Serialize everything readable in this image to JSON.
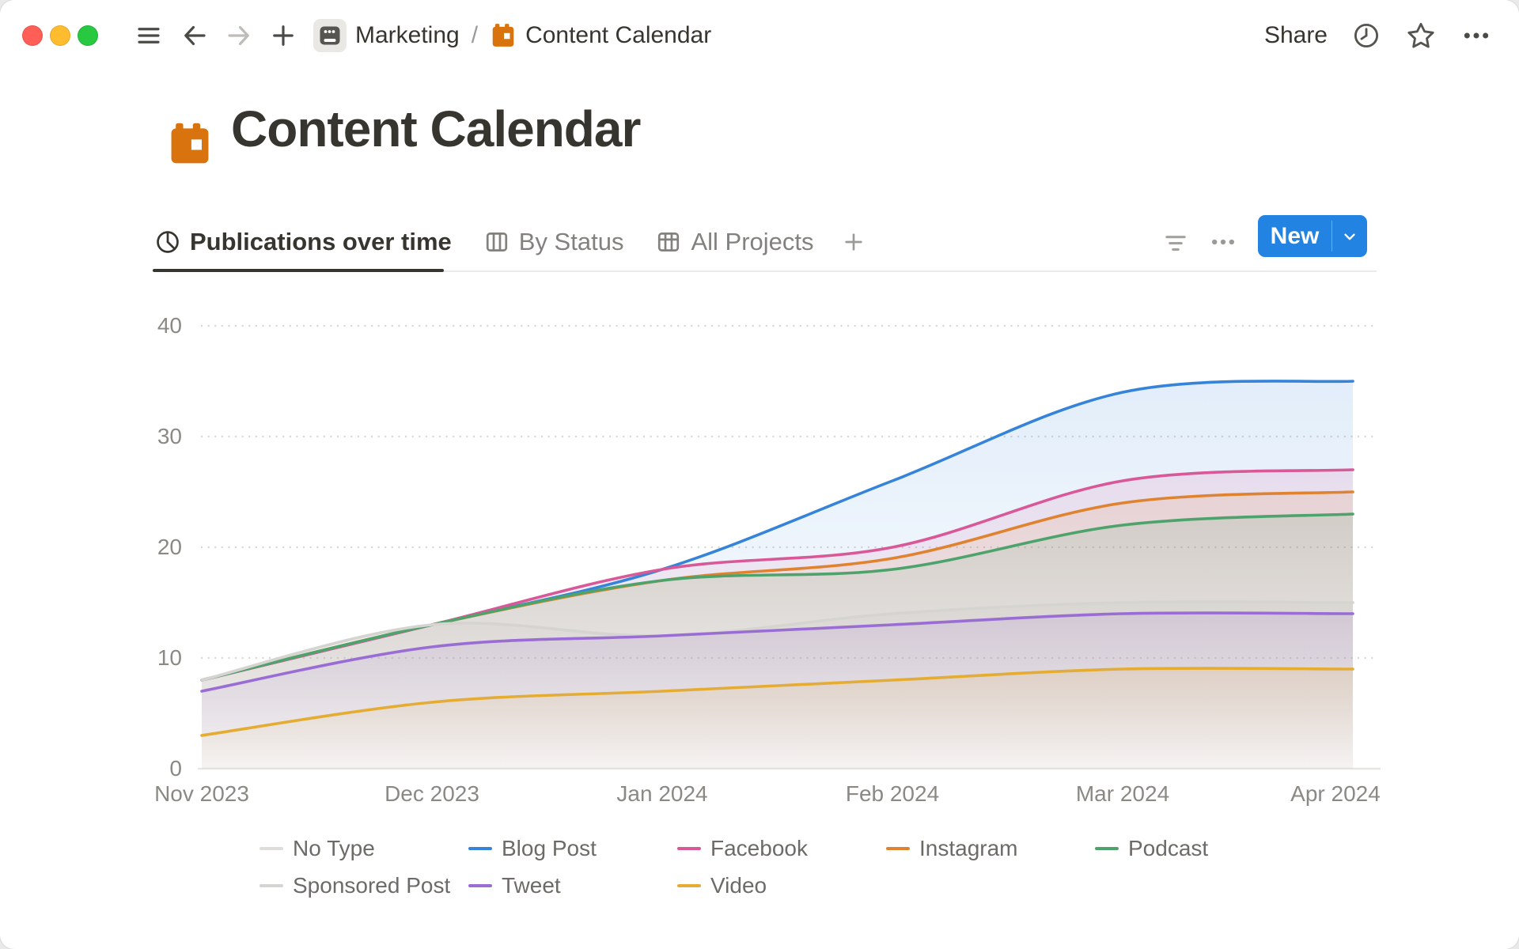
{
  "window": {
    "breadcrumb": {
      "workspace": "Marketing",
      "separator": "/",
      "page": "Content Calendar"
    },
    "share_label": "Share"
  },
  "page": {
    "title": "Content Calendar"
  },
  "tabs": [
    {
      "label": "Publications over time",
      "icon": "pie-chart-icon",
      "active": true
    },
    {
      "label": "By Status",
      "icon": "board-icon",
      "active": false
    },
    {
      "label": "All Projects",
      "icon": "table-icon",
      "active": false
    }
  ],
  "toolbar": {
    "new_label": "New"
  },
  "icons": {
    "titlebar": [
      "traffic-light-close",
      "traffic-light-minimize",
      "traffic-light-zoom",
      "sidebar-menu-icon",
      "back-arrow-icon",
      "forward-arrow-icon",
      "new-tab-plus-icon",
      "workspace-icon",
      "calendar-icon",
      "clock-history-icon",
      "star-favorite-icon",
      "more-ellipsis-icon"
    ],
    "tab_row": [
      "pie-chart-icon",
      "board-icon",
      "table-icon",
      "add-view-plus-icon",
      "filter-icon",
      "view-options-ellipsis-icon",
      "chevron-down-icon"
    ]
  },
  "colors": {
    "accent_blue": "#2383e2",
    "calendar_orange": "#d9730d",
    "text_dark": "#37352f",
    "text_gray": "#82817d",
    "axis_gray": "#8a8984",
    "traffic_red": "#ff5f57",
    "traffic_yellow": "#febc2e",
    "traffic_green": "#28c840"
  },
  "chart_data": {
    "type": "area",
    "title": "Publications over time",
    "x": [
      "Nov 2023",
      "Dec 2023",
      "Jan 2024",
      "Feb 2024",
      "Mar 2024",
      "Apr 2024"
    ],
    "xlabel": "",
    "ylabel": "",
    "ylim": [
      0,
      40
    ],
    "yticks": [
      0,
      10,
      20,
      30,
      40
    ],
    "grid": "horizontal-dotted",
    "legend_position": "bottom",
    "line_style": "smooth",
    "series": [
      {
        "name": "No Type",
        "color": "#deddd9",
        "values": [
          8,
          13,
          12,
          14,
          15,
          15
        ]
      },
      {
        "name": "Blog Post",
        "color": "#3584da",
        "values": [
          8,
          13,
          18,
          26,
          34,
          35
        ]
      },
      {
        "name": "Facebook",
        "color": "#d85898",
        "values": [
          8,
          13,
          18,
          20,
          26,
          27
        ]
      },
      {
        "name": "Instagram",
        "color": "#e08330",
        "values": [
          8,
          13,
          17,
          19,
          24,
          25
        ]
      },
      {
        "name": "Podcast",
        "color": "#4ea36c",
        "values": [
          8,
          13,
          17,
          18,
          22,
          23
        ]
      },
      {
        "name": "Sponsored Post",
        "color": "#d5d4d0",
        "values": [
          8,
          13,
          12,
          14,
          15,
          15
        ]
      },
      {
        "name": "Tweet",
        "color": "#9a6dd5",
        "values": [
          7,
          11,
          12,
          13,
          14,
          14
        ]
      },
      {
        "name": "Video",
        "color": "#e5ac33",
        "values": [
          3,
          6,
          7,
          8,
          9,
          9
        ]
      }
    ]
  }
}
